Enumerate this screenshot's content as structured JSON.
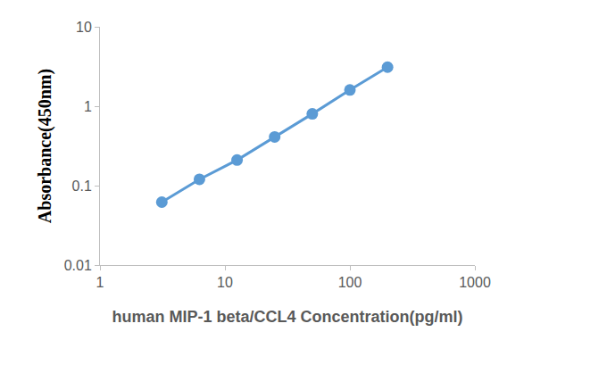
{
  "chart_data": {
    "type": "line",
    "x_label": "human MIP-1 beta/CCL4 Concentration(pg/ml)",
    "y_label": "Absorbance(450nm)",
    "x": [
      3.125,
      6.25,
      12.5,
      25,
      50,
      100,
      200
    ],
    "values": [
      0.062,
      0.12,
      0.21,
      0.41,
      0.8,
      1.6,
      3.1
    ],
    "color": "#5b9bd5",
    "marker": "circle",
    "line_style": "solid",
    "log": true,
    "grid": false,
    "xlim": [
      1,
      1000
    ],
    "xticks": [
      1,
      10,
      100,
      1000
    ],
    "ylim": [
      0.01,
      10
    ],
    "yticks": [
      0.01,
      0.1,
      1,
      10
    ]
  }
}
